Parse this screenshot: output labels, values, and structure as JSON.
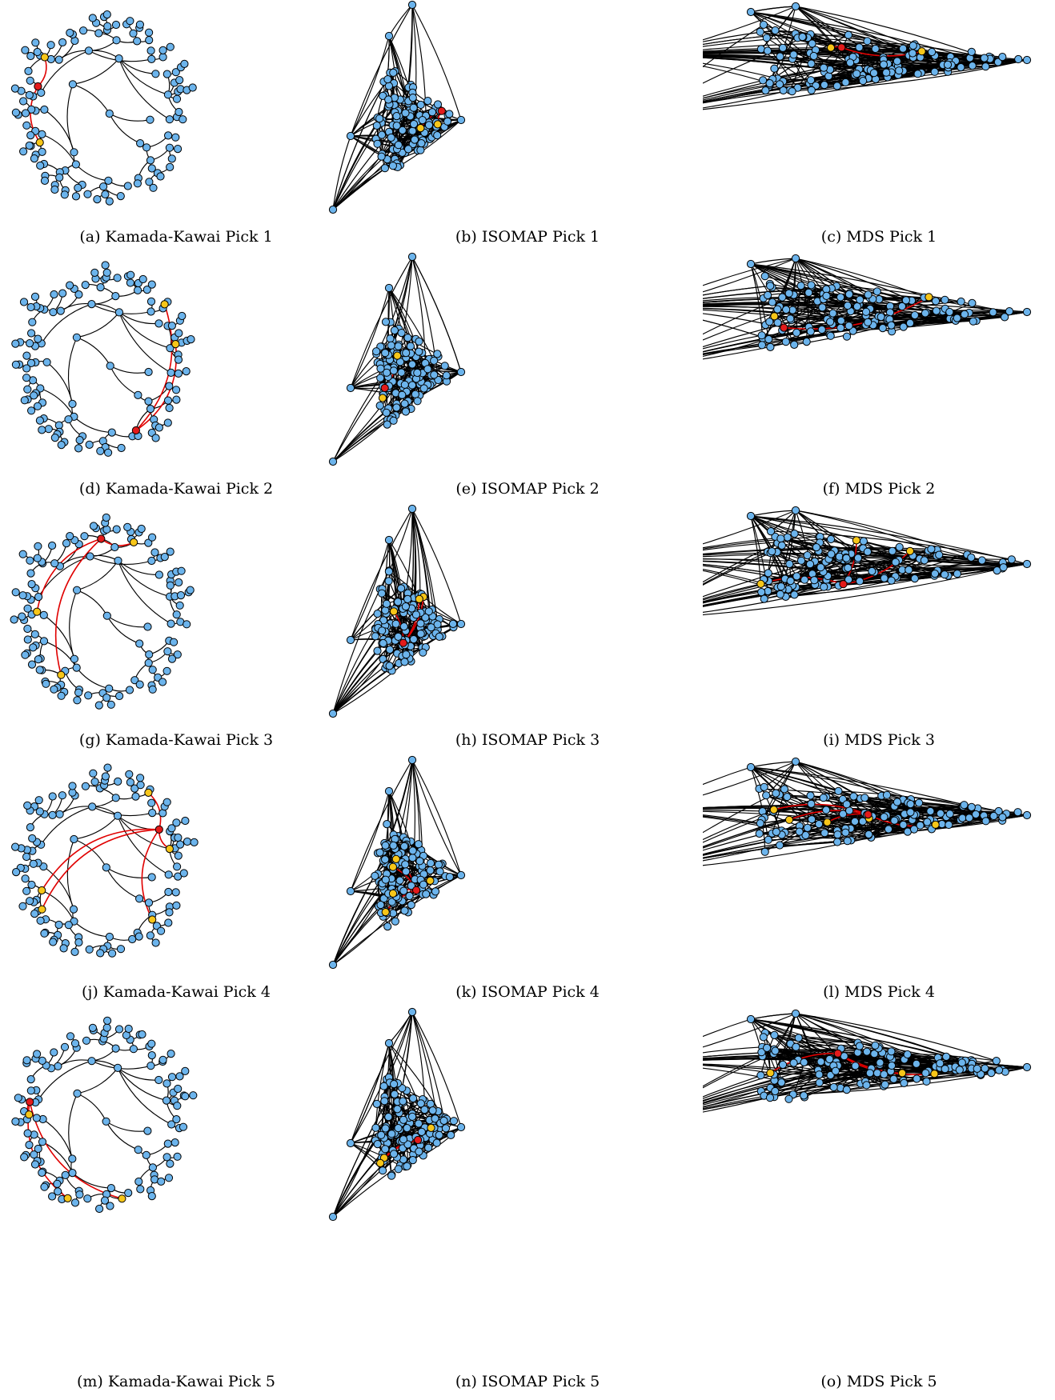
{
  "colors": {
    "node": "#6cb4ec",
    "highlight_center": "#e31b1b",
    "highlight_neighbor": "#f7c619",
    "highlight_edge": "#e00000",
    "edge": "#000000"
  },
  "panels": [
    {
      "id": "a",
      "caption": "(a) Kamada-Kawai Pick 1",
      "layout": "Kamada-Kawai",
      "pick": 1
    },
    {
      "id": "b",
      "caption": "(b) ISOMAP Pick 1",
      "layout": "ISOMAP",
      "pick": 1
    },
    {
      "id": "c",
      "caption": "(c) MDS Pick 1",
      "layout": "MDS",
      "pick": 1
    },
    {
      "id": "d",
      "caption": "(d) Kamada-Kawai Pick 2",
      "layout": "Kamada-Kawai",
      "pick": 2
    },
    {
      "id": "e",
      "caption": "(e) ISOMAP Pick 2",
      "layout": "ISOMAP",
      "pick": 2
    },
    {
      "id": "f",
      "caption": "(f) MDS Pick 2",
      "layout": "MDS",
      "pick": 2
    },
    {
      "id": "g",
      "caption": "(g) Kamada-Kawai Pick 3",
      "layout": "Kamada-Kawai",
      "pick": 3
    },
    {
      "id": "h",
      "caption": "(h) ISOMAP Pick 3",
      "layout": "ISOMAP",
      "pick": 3
    },
    {
      "id": "i",
      "caption": "(i) MDS Pick 3",
      "layout": "MDS",
      "pick": 3
    },
    {
      "id": "j",
      "caption": "(j) Kamada-Kawai Pick 4",
      "layout": "Kamada-Kawai",
      "pick": 4
    },
    {
      "id": "k",
      "caption": "(k) ISOMAP Pick 4",
      "layout": "ISOMAP",
      "pick": 4
    },
    {
      "id": "l",
      "caption": "(l) MDS Pick 4",
      "layout": "MDS",
      "pick": 4
    },
    {
      "id": "m",
      "caption": "(m) Kamada-Kawai Pick 5",
      "layout": "Kamada-Kawai",
      "pick": 5
    },
    {
      "id": "n",
      "caption": "(n) ISOMAP Pick 5",
      "layout": "ISOMAP",
      "pick": 5
    },
    {
      "id": "o",
      "caption": "(o) MDS Pick 5",
      "layout": "MDS",
      "pick": 5
    }
  ]
}
